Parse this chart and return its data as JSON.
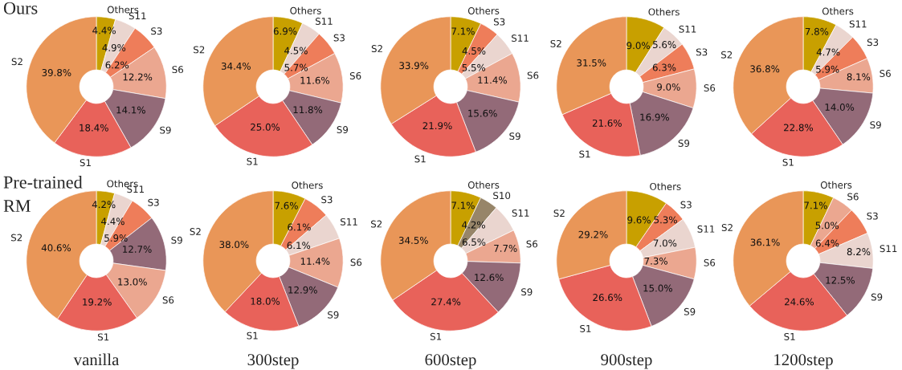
{
  "chart_data": [
    {
      "type": "donut",
      "annotations": [
        "Ours"
      ],
      "categories": [
        "Others",
        "S11",
        "S3",
        "S6",
        "S9",
        "S1",
        "S2"
      ],
      "values": [
        4.4,
        4.9,
        6.2,
        12.2,
        14.1,
        18.4,
        39.8
      ],
      "value_labels": [
        "4.4%",
        "4.9%",
        "6.2%",
        "12.2%",
        "14.1%",
        "18.4%",
        "39.8%"
      ],
      "colors": [
        "#c8a000",
        "#ead5cf",
        "#ee7d5a",
        "#eba790",
        "#936a78",
        "#e8625a",
        "#e99658"
      ]
    },
    {
      "type": "donut",
      "categories": [
        "Others",
        "S11",
        "S3",
        "S6",
        "S9",
        "S1",
        "S2"
      ],
      "values": [
        6.9,
        4.5,
        5.7,
        11.6,
        11.8,
        25.0,
        34.4
      ],
      "value_labels": [
        "6.9%",
        "4.5%",
        "5.7%",
        "11.6%",
        "11.8%",
        "25.0%",
        "34.4%"
      ],
      "colors": [
        "#c8a000",
        "#ead5cf",
        "#ee7d5a",
        "#eba790",
        "#936a78",
        "#e8625a",
        "#e99658"
      ]
    },
    {
      "type": "donut",
      "categories": [
        "Others",
        "S3",
        "S11",
        "S6",
        "S9",
        "S1",
        "S2"
      ],
      "values": [
        7.1,
        4.5,
        5.5,
        11.4,
        15.6,
        21.9,
        33.9
      ],
      "value_labels": [
        "7.1%",
        "4.5%",
        "5.5%",
        "11.4%",
        "15.6%",
        "21.9%",
        "33.9%"
      ],
      "colors": [
        "#c8a000",
        "#ee7d5a",
        "#ead5cf",
        "#eba790",
        "#936a78",
        "#e8625a",
        "#e99658"
      ]
    },
    {
      "type": "donut",
      "categories": [
        "Others",
        "S11",
        "S3",
        "S6",
        "S9",
        "S1",
        "S2"
      ],
      "values": [
        9.0,
        5.6,
        6.3,
        9.0,
        16.9,
        21.6,
        31.5
      ],
      "value_labels": [
        "9.0%",
        "5.6%",
        "6.3%",
        "9.0%",
        "16.9%",
        "21.6%",
        "31.5%"
      ],
      "colors": [
        "#c8a000",
        "#ead5cf",
        "#ee7d5a",
        "#eba790",
        "#936a78",
        "#e8625a",
        "#e99658"
      ]
    },
    {
      "type": "donut",
      "categories": [
        "Others",
        "S11",
        "S3",
        "S6",
        "S9",
        "S1",
        "S2"
      ],
      "values": [
        7.8,
        4.7,
        5.9,
        8.1,
        14.0,
        22.8,
        36.8
      ],
      "value_labels": [
        "7.8%",
        "4.7%",
        "5.9%",
        "8.1%",
        "14.0%",
        "22.8%",
        "36.8%"
      ],
      "colors": [
        "#c8a000",
        "#ead5cf",
        "#ee7d5a",
        "#eba790",
        "#936a78",
        "#e8625a",
        "#e99658"
      ]
    },
    {
      "type": "donut",
      "annotations": [
        "Pre-trained\nRM"
      ],
      "xlabel": "vanilla",
      "categories": [
        "Others",
        "S11",
        "S3",
        "S9",
        "S6",
        "S1",
        "S2"
      ],
      "values": [
        4.2,
        4.4,
        5.9,
        12.7,
        13.0,
        19.2,
        40.6
      ],
      "value_labels": [
        "4.2%",
        "4.4%",
        "5.9%",
        "12.7%",
        "13.0%",
        "19.2%",
        "40.6%"
      ],
      "colors": [
        "#c8a000",
        "#ead5cf",
        "#ee7d5a",
        "#936a78",
        "#eba790",
        "#e8625a",
        "#e99658"
      ]
    },
    {
      "type": "donut",
      "xlabel": "300step",
      "categories": [
        "Others",
        "S3",
        "S11",
        "S6",
        "S9",
        "S1",
        "S2"
      ],
      "values": [
        7.6,
        6.1,
        6.1,
        11.4,
        12.9,
        18.0,
        38.0
      ],
      "value_labels": [
        "7.6%",
        "6.1%",
        "6.1%",
        "11.4%",
        "12.9%",
        "18.0%",
        "38.0%"
      ],
      "colors": [
        "#c8a000",
        "#ee7d5a",
        "#ead5cf",
        "#eba790",
        "#936a78",
        "#e8625a",
        "#e99658"
      ]
    },
    {
      "type": "donut",
      "xlabel": "600step",
      "categories": [
        "Others",
        "S10",
        "S11",
        "S6",
        "S9",
        "S1",
        "S2"
      ],
      "values": [
        7.1,
        4.2,
        6.5,
        7.7,
        12.6,
        27.4,
        34.5
      ],
      "value_labels": [
        "7.1%",
        "4.2%",
        "6.5%",
        "7.7%",
        "12.6%",
        "27.4%",
        "34.5%"
      ],
      "colors": [
        "#c8a000",
        "#978569",
        "#ead5cf",
        "#eba790",
        "#936a78",
        "#e8625a",
        "#e99658"
      ]
    },
    {
      "type": "donut",
      "xlabel": "900step",
      "categories": [
        "Others",
        "S3",
        "S11",
        "S6",
        "S9",
        "S1",
        "S2"
      ],
      "values": [
        9.6,
        5.3,
        7.0,
        7.3,
        15.0,
        26.6,
        29.2
      ],
      "value_labels": [
        "9.6%",
        "5.3%",
        "7.0%",
        "7.3%",
        "15.0%",
        "26.6%",
        "29.2%"
      ],
      "colors": [
        "#c8a000",
        "#ee7d5a",
        "#ead5cf",
        "#eba790",
        "#936a78",
        "#e8625a",
        "#e99658"
      ]
    },
    {
      "type": "donut",
      "xlabel": "1200step",
      "categories": [
        "Others",
        "S6",
        "S3",
        "S11",
        "S9",
        "S1",
        "S2"
      ],
      "values": [
        7.1,
        5.0,
        6.4,
        8.2,
        12.5,
        24.6,
        36.1
      ],
      "value_labels": [
        "7.1%",
        "5.0%",
        "6.4%",
        "8.2%",
        "12.5%",
        "24.6%",
        "36.1%"
      ],
      "colors": [
        "#c8a000",
        "#eba790",
        "#ee7d5a",
        "#ead5cf",
        "#936a78",
        "#e8625a",
        "#e99658"
      ]
    }
  ]
}
